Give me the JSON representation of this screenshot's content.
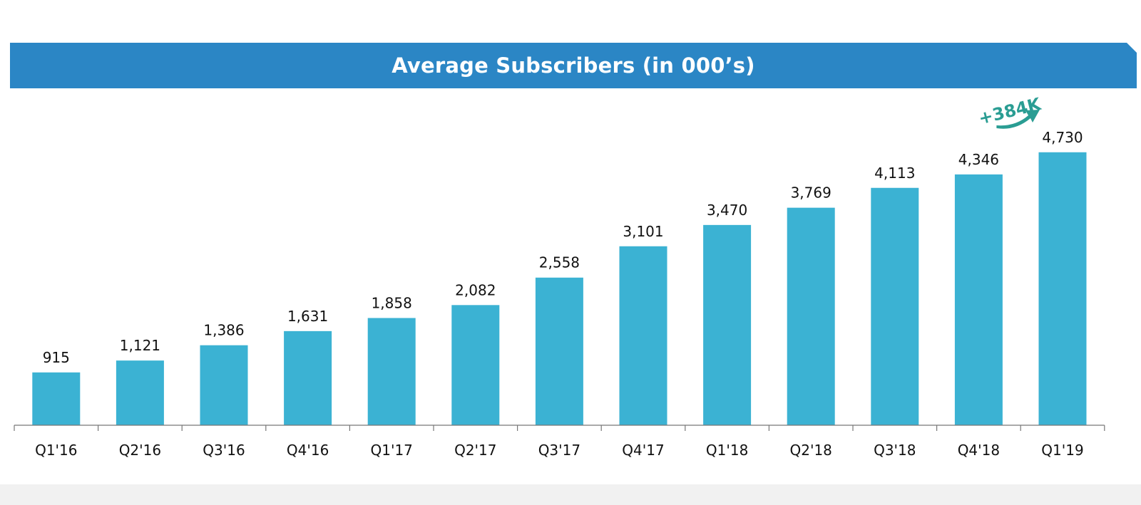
{
  "colors": {
    "banner": "#2b86c5",
    "bar": "#3bb2d3",
    "axis": "#777777",
    "text": "#111111",
    "annotation": "#2a9d93"
  },
  "chart_data": {
    "type": "bar",
    "title": "Average Subscribers (in 000’s)",
    "categories": [
      "Q1'16",
      "Q2'16",
      "Q3'16",
      "Q4'16",
      "Q1'17",
      "Q2'17",
      "Q3'17",
      "Q4'17",
      "Q1'18",
      "Q2'18",
      "Q3'18",
      "Q4'18",
      "Q1'19"
    ],
    "values": [
      915,
      1121,
      1386,
      1631,
      1858,
      2082,
      2558,
      3101,
      3470,
      3769,
      4113,
      4346,
      4730
    ],
    "value_labels": [
      "915",
      "1,121",
      "1,386",
      "1,631",
      "1,858",
      "2,082",
      "2,558",
      "3,101",
      "3,470",
      "3,769",
      "4,113",
      "4,346",
      "4,730"
    ],
    "ylim": [
      0,
      4900
    ],
    "grid": false,
    "xlabel": "",
    "ylabel": "",
    "annotation": {
      "text": "+384K",
      "from": "Q4'18",
      "to": "Q1'19"
    }
  }
}
